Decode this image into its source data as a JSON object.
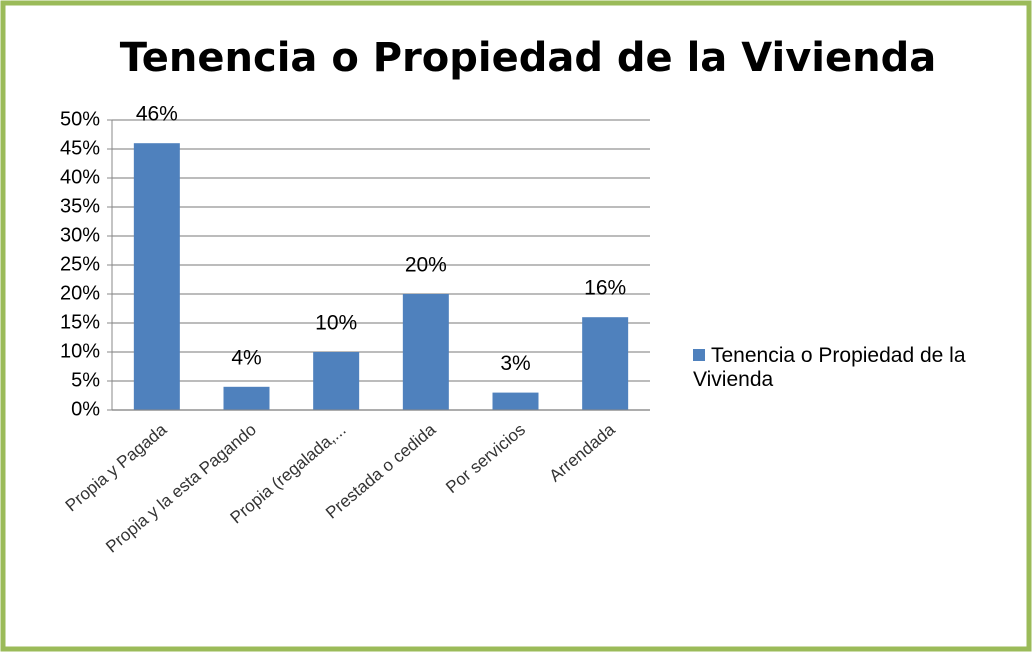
{
  "chart_data": {
    "type": "bar",
    "title": "Tenencia o Propiedad de la Vivienda",
    "categories": [
      "Propia y Pagada",
      "Propia y la esta Pagando",
      "Propia (regalada,...",
      "Prestada o cedida",
      "Por servicios",
      "Arrendada"
    ],
    "series": [
      {
        "name": "Tenencia o Propiedad de la Vivienda",
        "color": "#4f81bd",
        "values": [
          46,
          4,
          10,
          20,
          3,
          16
        ],
        "value_labels": [
          "46%",
          "4%",
          "10%",
          "20%",
          "3%",
          "16%"
        ]
      }
    ],
    "ylim": [
      0,
      50
    ],
    "yticks": [
      {
        "value": 0,
        "label": "0%"
      },
      {
        "value": 5,
        "label": "5%"
      },
      {
        "value": 10,
        "label": "10%"
      },
      {
        "value": 15,
        "label": "15%"
      },
      {
        "value": 20,
        "label": "20%"
      },
      {
        "value": 25,
        "label": "25%"
      },
      {
        "value": 30,
        "label": "30%"
      },
      {
        "value": 35,
        "label": "35%"
      },
      {
        "value": 40,
        "label": "40%"
      },
      {
        "value": 45,
        "label": "45%"
      },
      {
        "value": 50,
        "label": "50%"
      }
    ],
    "grid": true,
    "legend": "right"
  }
}
